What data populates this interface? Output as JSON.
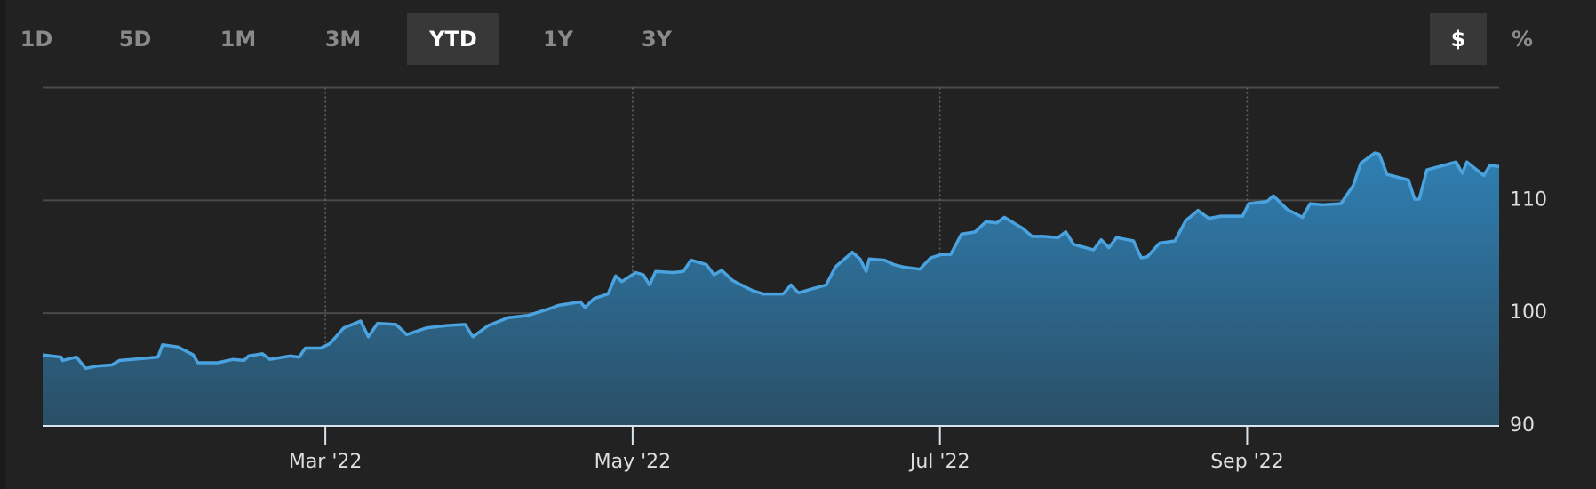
{
  "toolbar": {
    "ranges": [
      "1D",
      "5D",
      "1M",
      "3M",
      "YTD",
      "1Y",
      "3Y"
    ],
    "selected_range": 4,
    "units": [
      "$",
      "%"
    ],
    "selected_unit": 0
  },
  "chart_data": {
    "type": "area",
    "color": "#4aa3df",
    "x": [
      0.16,
      0.28,
      0.29,
      0.38,
      0.44,
      0.51,
      0.61,
      0.66,
      0.74,
      0.91,
      0.94,
      1.04,
      1.14,
      1.17,
      1.3,
      1.4,
      1.47,
      1.5,
      1.59,
      1.64,
      1.77,
      1.83,
      1.87,
      1.97,
      2.03,
      2.12,
      2.23,
      2.28,
      2.34,
      2.46,
      2.53,
      2.66,
      2.79,
      2.91,
      2.96,
      3.06,
      3.19,
      3.32,
      3.39,
      3.46,
      3.52,
      3.66,
      3.69,
      3.75,
      3.84,
      3.89,
      3.93,
      4.02,
      4.07,
      4.11,
      4.15,
      4.26,
      4.33,
      4.38,
      4.48,
      4.53,
      4.58,
      4.65,
      4.78,
      4.85,
      4.98,
      5.03,
      5.08,
      5.18,
      5.26,
      5.32,
      5.43,
      5.48,
      5.52,
      5.54,
      5.64,
      5.7,
      5.76,
      5.87,
      5.94,
      6.01,
      6.07,
      6.14,
      6.23,
      6.3,
      6.37,
      6.42,
      6.54,
      6.6,
      6.67,
      6.77,
      6.82,
      6.87,
      7.0,
      7.05,
      7.1,
      7.15,
      7.26,
      7.31,
      7.35,
      7.43,
      7.53,
      7.6,
      7.68,
      7.75,
      7.83,
      7.91,
      7.97,
      8.01,
      8.13,
      8.17,
      8.26,
      8.36,
      8.41,
      8.49,
      8.61,
      8.69,
      8.74,
      8.83,
      8.86,
      8.91,
      9.05,
      9.09,
      9.12,
      9.17,
      9.28,
      9.36,
      9.4,
      9.43,
      9.54,
      9.58,
      9.64
    ],
    "values": [
      96.3,
      96.1,
      95.8,
      96.1,
      95.1,
      95.3,
      95.4,
      95.8,
      95.9,
      96.1,
      97.2,
      97.0,
      96.3,
      95.6,
      95.6,
      95.9,
      95.8,
      96.2,
      96.4,
      95.9,
      96.2,
      96.1,
      96.9,
      96.9,
      97.3,
      98.7,
      99.3,
      97.9,
      99.1,
      99.0,
      98.1,
      98.7,
      98.9,
      99.0,
      97.9,
      98.9,
      99.6,
      99.8,
      100.1,
      100.4,
      100.7,
      101.0,
      100.5,
      101.3,
      101.7,
      103.3,
      102.8,
      103.6,
      103.4,
      102.5,
      103.7,
      103.6,
      103.7,
      104.7,
      104.3,
      103.4,
      103.8,
      102.9,
      102.0,
      101.7,
      101.7,
      102.5,
      101.8,
      102.2,
      102.5,
      104.1,
      105.4,
      104.8,
      103.7,
      104.8,
      104.7,
      104.3,
      104.1,
      103.9,
      104.9,
      105.2,
      105.2,
      107.0,
      107.2,
      108.1,
      108.0,
      108.5,
      107.5,
      106.8,
      106.8,
      106.7,
      107.2,
      106.1,
      105.6,
      106.5,
      105.8,
      106.7,
      106.4,
      104.9,
      105.0,
      106.2,
      106.4,
      108.2,
      109.1,
      108.4,
      108.6,
      108.6,
      108.6,
      109.7,
      109.9,
      110.4,
      109.2,
      108.5,
      109.7,
      109.6,
      109.7,
      111.3,
      113.3,
      114.2,
      114.1,
      112.3,
      111.8,
      110.1,
      110.1,
      112.7,
      113.1,
      113.4,
      112.4,
      113.4,
      112.2,
      113.1,
      113.0
    ],
    "xlim": [
      0.16,
      9.64
    ],
    "xticks": [
      {
        "value": 2,
        "label": "Mar '22"
      },
      {
        "value": 4,
        "label": "May '22"
      },
      {
        "value": 6,
        "label": "Jul '22"
      },
      {
        "value": 8,
        "label": "Sep '22"
      }
    ],
    "ylim": [
      90,
      120
    ],
    "yticks": [
      90,
      100,
      110
    ],
    "grid": true
  }
}
